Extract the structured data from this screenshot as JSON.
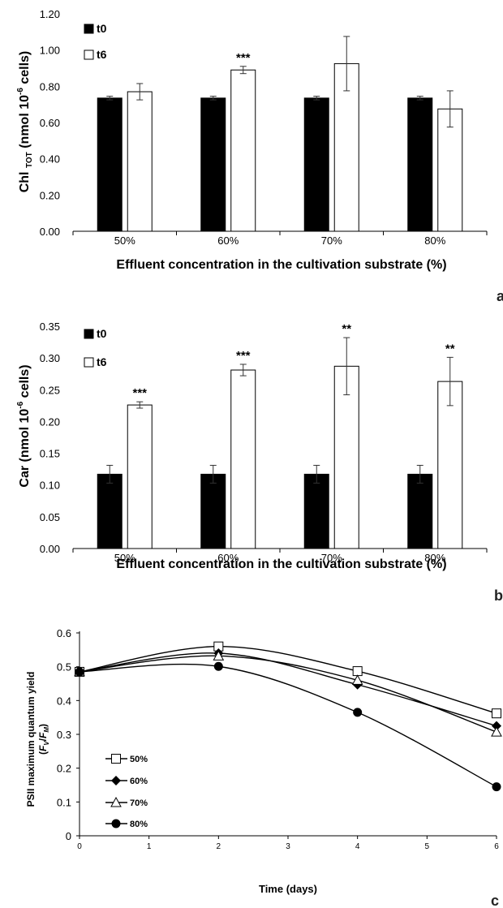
{
  "chart_data": [
    {
      "type": "bar",
      "panel_letter": "a",
      "ylabel_main": "Chl ",
      "ylabel_sub": "TOT",
      "ylabel_rest": " (nmol 10",
      "ylabel_sup": "-6",
      "ylabel_end": " cells)",
      "xlabel": "Effluent concentration in the cultivation substrate (%)",
      "categories": [
        "50%",
        "60%",
        "70%",
        "80%"
      ],
      "ylim": [
        0,
        1.2
      ],
      "yticks": [
        "0.00",
        "0.20",
        "0.40",
        "0.60",
        "0.80",
        "1.00",
        "1.20"
      ],
      "series": [
        {
          "name": "t0",
          "fill": "#000000",
          "values": [
            0.735,
            0.735,
            0.735,
            0.735
          ],
          "errors": [
            0.01,
            0.01,
            0.01,
            0.01
          ]
        },
        {
          "name": "t6",
          "fill": "#ffffff",
          "values": [
            0.77,
            0.89,
            0.925,
            0.675
          ],
          "errors": [
            0.045,
            0.02,
            0.15,
            0.1
          ]
        }
      ],
      "significance": [
        {
          "category": "60%",
          "label": "***"
        }
      ],
      "legend_position": "top-left"
    },
    {
      "type": "bar",
      "panel_letter": "b",
      "ylabel_main": "Car (nmol 10",
      "ylabel_sup": "-6",
      "ylabel_end": " cells)",
      "xlabel": "Effluent concentration in the cultivation substrate (%)",
      "categories": [
        "50%",
        "60%",
        "70%",
        "80%"
      ],
      "ylim": [
        0,
        0.35
      ],
      "yticks": [
        "0.00",
        "0.05",
        "0.10",
        "0.15",
        "0.20",
        "0.25",
        "0.30",
        "0.35"
      ],
      "series": [
        {
          "name": "t0",
          "fill": "#000000",
          "values": [
            0.117,
            0.117,
            0.117,
            0.117
          ],
          "errors": [
            0.014,
            0.014,
            0.014,
            0.014
          ]
        },
        {
          "name": "t6",
          "fill": "#ffffff",
          "values": [
            0.226,
            0.281,
            0.287,
            0.263
          ],
          "errors": [
            0.005,
            0.009,
            0.045,
            0.038
          ]
        }
      ],
      "significance": [
        {
          "category": "50%",
          "label": "***"
        },
        {
          "category": "60%",
          "label": "***"
        },
        {
          "category": "70%",
          "label": "**"
        },
        {
          "category": "80%",
          "label": "**"
        }
      ],
      "legend_position": "top-left"
    },
    {
      "type": "line",
      "panel_letter": "c",
      "ylabel_line1": "PSII maximum quantum yield",
      "ylabel_line2_open": "(",
      "ylabel_F1": "F",
      "ylabel_V": "V",
      "ylabel_slash": "/",
      "ylabel_F2": "F",
      "ylabel_M": "M",
      "ylabel_close": ")",
      "xlabel": "Time (days)",
      "x": [
        0,
        2,
        4,
        6
      ],
      "xlim": [
        0,
        6
      ],
      "xticks": [
        "0",
        "1",
        "2",
        "3",
        "4",
        "5",
        "6"
      ],
      "ylim": [
        0,
        0.6
      ],
      "yticks": [
        "0",
        "0.1",
        "0.2",
        "0.3",
        "0.4",
        "0.5",
        "0.6"
      ],
      "series": [
        {
          "name": "50%",
          "marker": "open-square",
          "values": [
            0.485,
            0.56,
            0.487,
            0.362
          ]
        },
        {
          "name": "60%",
          "marker": "filled-diamond",
          "values": [
            0.485,
            0.54,
            0.447,
            0.325
          ]
        },
        {
          "name": "70%",
          "marker": "open-triangle",
          "values": [
            0.485,
            0.532,
            0.46,
            0.307
          ]
        },
        {
          "name": "80%",
          "marker": "filled-circle",
          "values": [
            0.485,
            0.501,
            0.365,
            0.145
          ]
        }
      ],
      "legend_position": "bottom-left"
    }
  ]
}
